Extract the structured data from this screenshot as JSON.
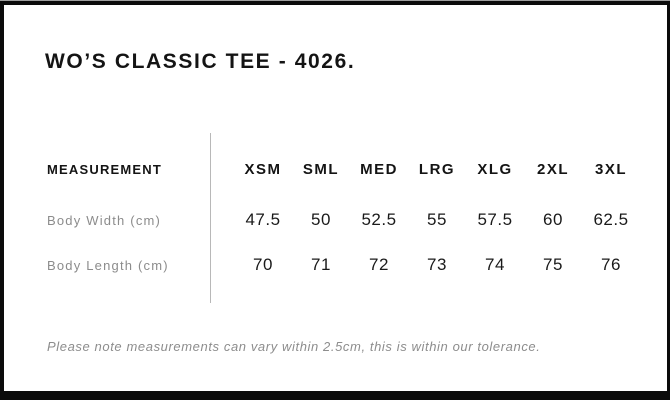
{
  "title": "WO’S CLASSIC TEE - 4026.",
  "table": {
    "header_label": "MEASUREMENT",
    "size_headers": [
      "XSM",
      "SML",
      "MED",
      "LRG",
      "XLG",
      "2XL",
      "3XL"
    ],
    "rows": [
      {
        "label": "Body Width (cm)",
        "values": [
          "47.5",
          "50",
          "52.5",
          "55",
          "57.5",
          "60",
          "62.5"
        ]
      },
      {
        "label": "Body Length (cm)",
        "values": [
          "70",
          "71",
          "72",
          "73",
          "74",
          "75",
          "76"
        ]
      }
    ]
  },
  "note": "Please note measurements can vary within 2.5cm, this is within our tolerance.",
  "colors": {
    "frame": "#0b0b0b",
    "frame_top_strip": "#9e9e9e",
    "card_background": "#ffffff",
    "heading_text": "#141414",
    "value_text": "#1a1a1a",
    "muted_text": "#8c8c8c",
    "divider": "#b8b8b8"
  }
}
